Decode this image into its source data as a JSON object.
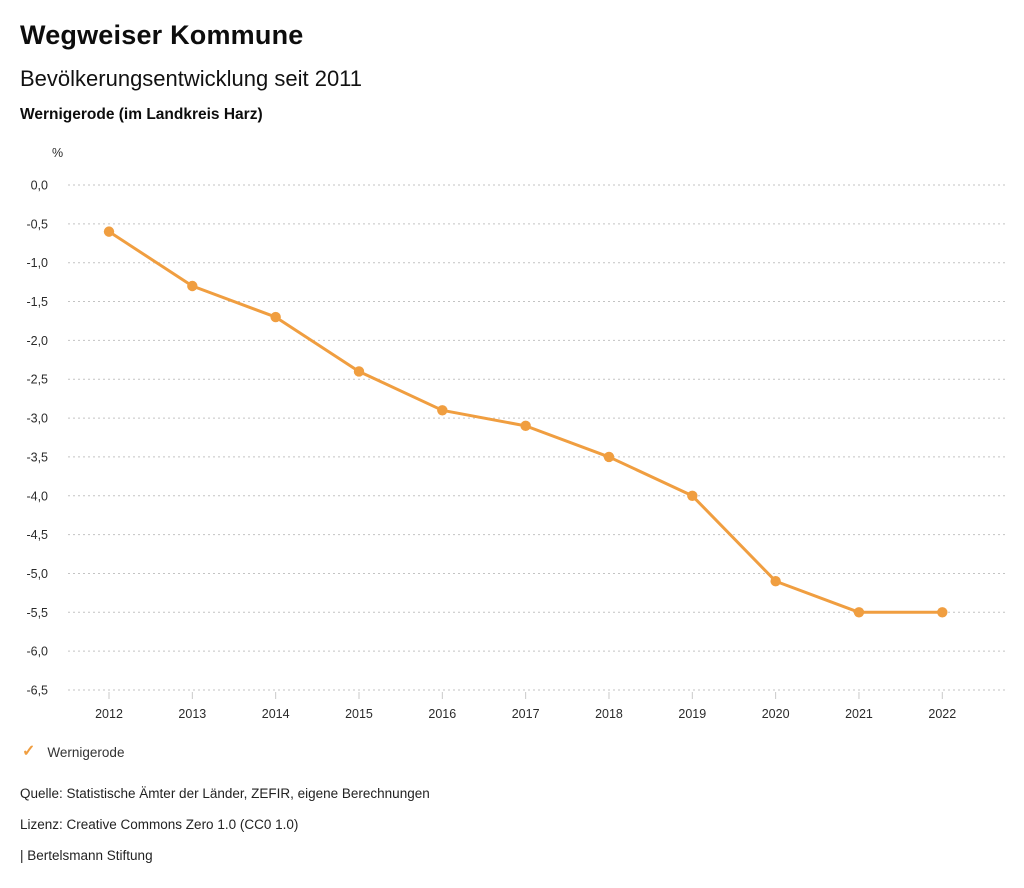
{
  "header": {
    "title": "Wegweiser Kommune",
    "subtitle": "Bevölkerungsentwicklung seit 2011",
    "region": "Wernigerode (im Landkreis Harz)"
  },
  "chart_data": {
    "type": "line",
    "title": "Bevölkerungsentwicklung seit 2011",
    "unit_label": "%",
    "x": [
      2012,
      2013,
      2014,
      2015,
      2016,
      2017,
      2018,
      2019,
      2020,
      2021,
      2022
    ],
    "series": [
      {
        "name": "Wernigerode",
        "color": "#F09E40",
        "values": [
          -0.6,
          -1.3,
          -1.7,
          -2.4,
          -2.9,
          -3.1,
          -3.5,
          -4.0,
          -5.1,
          -5.5,
          -5.5
        ]
      }
    ],
    "ylim": [
      -6.5,
      0.0
    ],
    "ytick_step": 0.5,
    "ytick_labels": [
      "0,0",
      "-0,5",
      "-1,0",
      "-1,5",
      "-2,0",
      "-2,5",
      "-3,0",
      "-3,5",
      "-4,0",
      "-4,5",
      "-5,0",
      "-5,5",
      "-6,0",
      "-6,5"
    ],
    "grid": "horizontal dotted",
    "grid_color": "#c3c3c3",
    "tick_color": "#c9c9c9",
    "legend_position": "bottom-left",
    "decimal_separator": ","
  },
  "legend": {
    "check_icon": "✓",
    "label": "Wernigerode",
    "color": "#F09E40"
  },
  "footer": {
    "source": "Quelle: Statistische Ämter der Länder, ZEFIR, eigene Berechnungen",
    "license": "Lizenz: Creative Commons Zero 1.0 (CC0 1.0)",
    "attribution": "| Bertelsmann Stiftung"
  }
}
